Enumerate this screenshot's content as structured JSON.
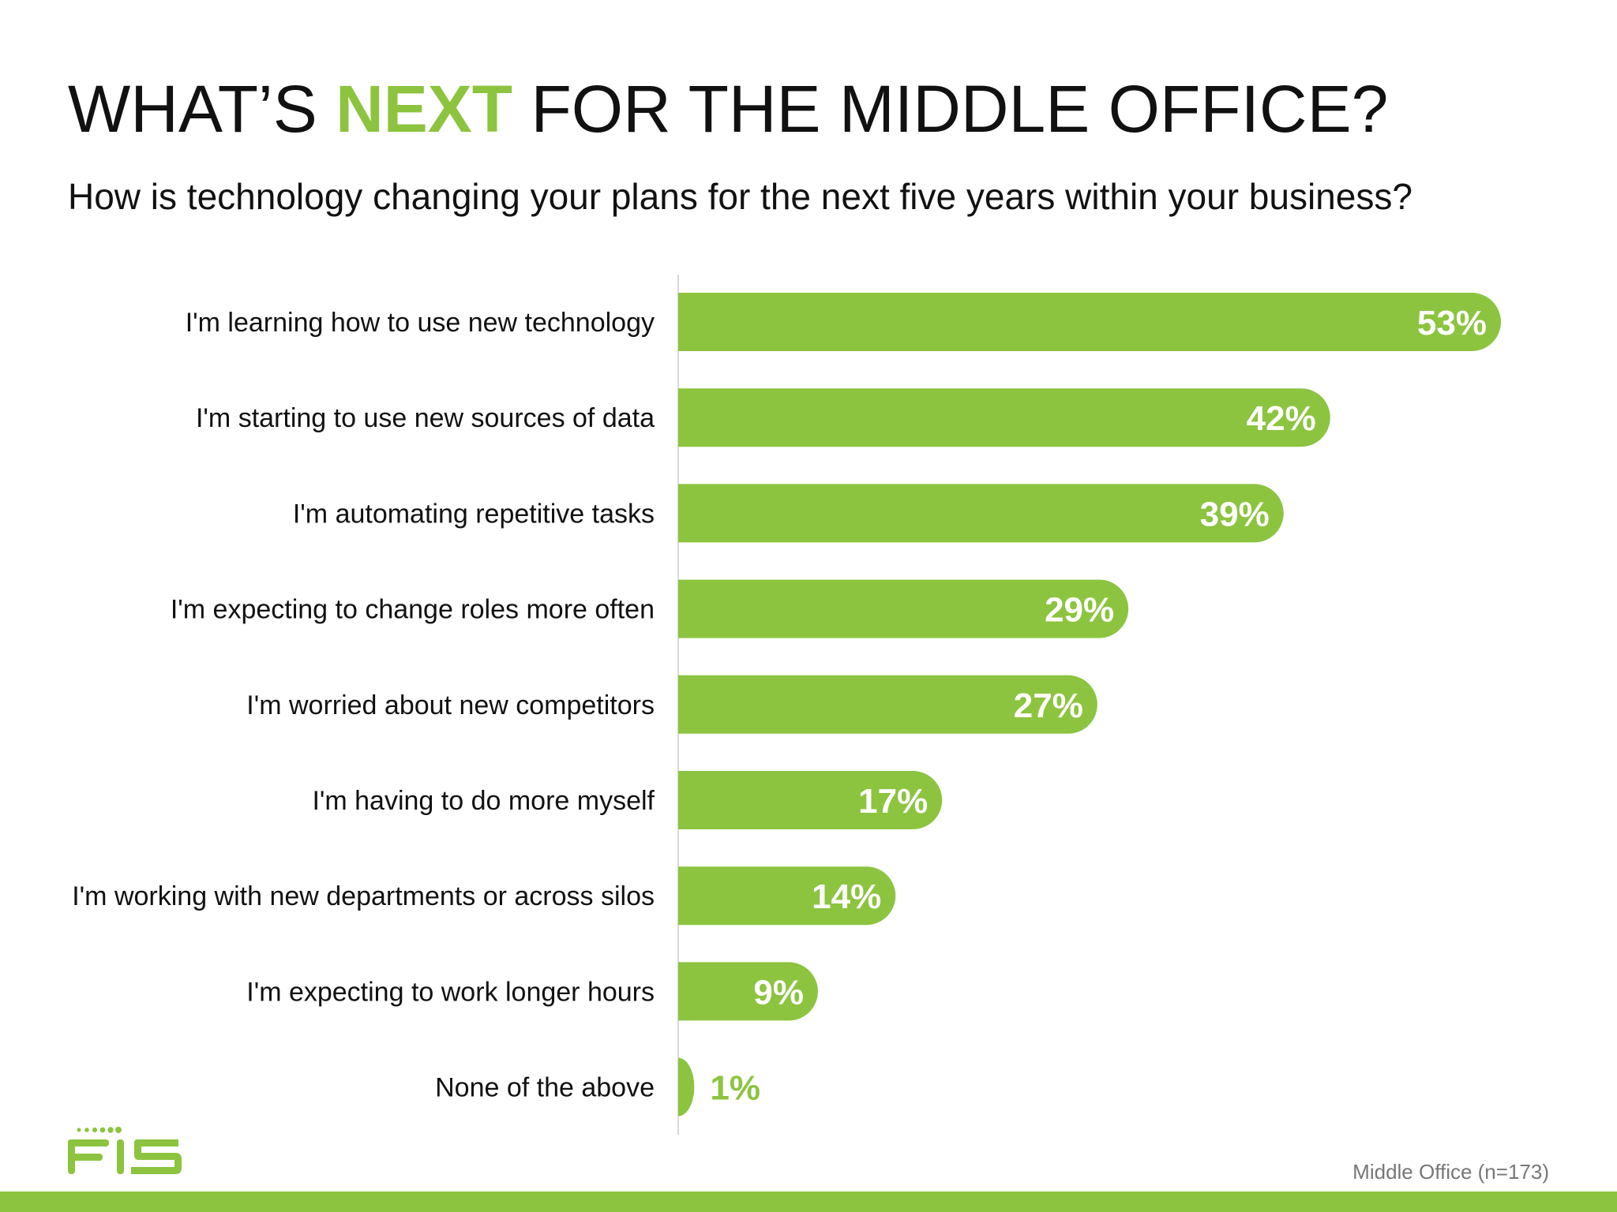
{
  "header": {
    "title_before": "WHAT’S ",
    "title_highlight": "NEXT",
    "title_after": " FOR THE MIDDLE OFFICE?",
    "subtitle": "How is technology changing your plans for the next five years within your business?"
  },
  "chart_data": {
    "type": "bar",
    "orientation": "horizontal",
    "title": "",
    "xlabel": "",
    "ylabel": "",
    "xlim": [
      0,
      53
    ],
    "grid": false,
    "categories": [
      "I'm learning how to use new technology",
      "I'm starting to use new sources of data",
      "I'm automating repetitive tasks",
      "I'm expecting to change roles more often",
      "I'm worried about new competitors",
      "I'm having to do more myself",
      "I'm working with new departments or across silos",
      "I'm expecting to work longer hours",
      "None of the above"
    ],
    "values": [
      53,
      42,
      39,
      29,
      27,
      17,
      14,
      9,
      1
    ],
    "value_labels": [
      "53%",
      "42%",
      "39%",
      "29%",
      "27%",
      "17%",
      "14%",
      "9%",
      "1%"
    ],
    "bar_color": "#8cc43f"
  },
  "footer": {
    "logo_text": "FIS",
    "note": "Middle Office (n=173)"
  },
  "colors": {
    "accent": "#8cc43f",
    "text": "#111111",
    "muted": "#777777"
  }
}
